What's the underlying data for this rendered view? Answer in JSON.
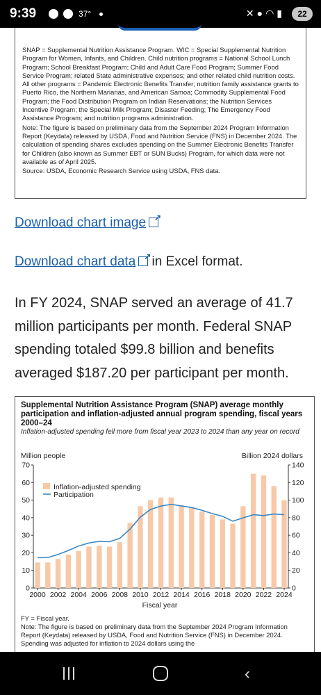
{
  "status_bar": {
    "time": "9:39",
    "temperature": "37°",
    "battery": "22"
  },
  "note_box": {
    "definitions": "SNAP = Supplemental Nutrition Assistance Program. WIC = Special Supplemental Nutrition Program for Women, Infants, and Children. Child nutrition programs = National School Lunch Program; School Breakfast Program; Child and Adult Care Food Program; Summer Food Service Program; related State administrative expenses; and other related child nutrition costs. All other programs = Pandemic Electronic Benefits Transfer; nutrition family assistance grants to Puerto Rico, the Northern Marianas, and American Samoa; Commodity Supplemental Food Program; the Food Distribution Program on Indian Reservations; the Nutrition Services Incentive Program; the Special Milk Program; Disaster Feeding; The Emergency Food Assistance Program; and nutrition programs administration.",
    "note": "Note: The figure is based on preliminary data from the September 2024 Program Information Report (Keydata) released by USDA, Food and Nutrition Service (FNS) in December 2024. The calculation of spending shares excludes spending on the Summer Electronic Benefits Transfer for Children (also known as Summer EBT or SUN Bucks) Program, for which data were not available as of April 2025.",
    "source": "Source: USDA, Economic Research Service using USDA, FNS data."
  },
  "links": {
    "download_image": "Download chart image",
    "download_data": "Download chart data",
    "download_data_suffix": " in Excel format."
  },
  "paragraph": "In FY 2024, SNAP served an average of 41.7 million participants per month. Federal SNAP spending totaled $99.8 billion and benefits averaged $187.20 per participant per month.",
  "chart_footer": {
    "fy_note": "FY = Fiscal year.",
    "note": "Note: The figure is based on preliminary data from the September 2024 Program Information Report (Keydata) released by USDA, Food and Nutrition Service (FNS) in December 2024. Spending was adjusted for inflation to 2024 dollars using the"
  },
  "colors": {
    "bar": "#f7c9a8",
    "line": "#3b87c4",
    "link": "#1a5fa8"
  },
  "chart_data": {
    "type": "bar",
    "title": "Supplemental Nutrition Assistance Program (SNAP) average monthly participation and inflation-adjusted annual program spending, fiscal years 2000–24",
    "subtitle": "Inflation-adjusted spending fell more from fiscal year 2023 to 2024 than any year on record",
    "ylabel_left": "Million people",
    "ylabel_right": "Billion 2024 dollars",
    "xlabel": "Fiscal year",
    "ylim_left": [
      0,
      70
    ],
    "ylim_right": [
      0,
      140
    ],
    "yticks_left": [
      "0",
      "10",
      "20",
      "30",
      "40",
      "50",
      "60",
      "70"
    ],
    "yticks_right": [
      "0",
      "20",
      "40",
      "60",
      "80",
      "100",
      "120",
      "140"
    ],
    "xticks": [
      "2000",
      "2002",
      "2004",
      "2006",
      "2008",
      "2010",
      "2012",
      "2014",
      "2016",
      "2018",
      "2020",
      "2022",
      "2024"
    ],
    "legend_position": "upper-left",
    "x": [
      2000,
      2001,
      2002,
      2003,
      2004,
      2005,
      2006,
      2007,
      2008,
      2009,
      2010,
      2011,
      2012,
      2013,
      2014,
      2015,
      2016,
      2017,
      2018,
      2019,
      2020,
      2021,
      2022,
      2023,
      2024
    ],
    "series": [
      {
        "name": "Inflation-adjusted spending",
        "axis": "right",
        "kind": "bar",
        "values": [
          29,
          29,
          33,
          38,
          42,
          47,
          48,
          47,
          52,
          74,
          93,
          100,
          103,
          103,
          94,
          92,
          87,
          83,
          78,
          73,
          93,
          130,
          128,
          116,
          99.8
        ]
      },
      {
        "name": "Participation",
        "axis": "left",
        "kind": "line",
        "values": [
          17.2,
          17.3,
          19.1,
          21.3,
          23.9,
          25.6,
          26.5,
          26.3,
          28.2,
          33.5,
          40.3,
          44.7,
          46.6,
          47.6,
          46.7,
          45.8,
          44.2,
          42.3,
          40.8,
          38.0,
          39.9,
          41.7,
          41.2,
          42.1,
          41.7
        ]
      }
    ]
  }
}
